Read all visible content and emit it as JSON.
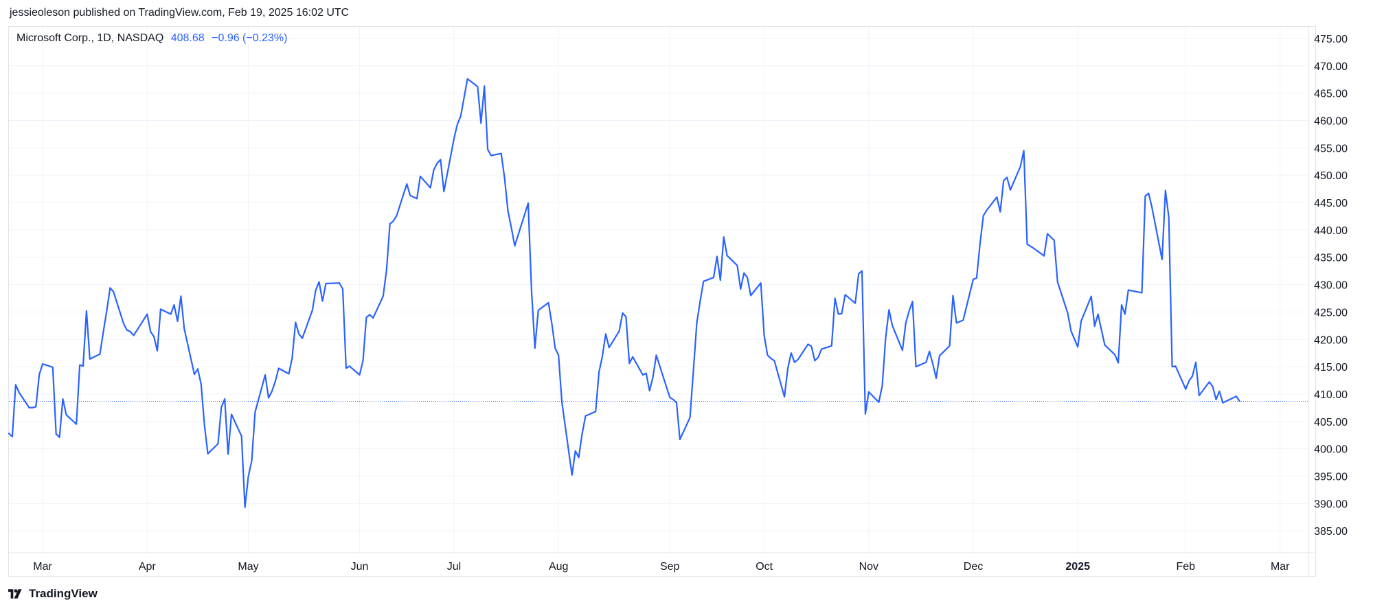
{
  "header": {
    "published_by": "jessieoleson published on TradingView.com, Feb 19, 2025 16:02 UTC"
  },
  "legend": {
    "symbol": "Microsoft Corp., 1D, NASDAQ",
    "price": "408.68",
    "change": "−0.96 (−0.23%)"
  },
  "footer": {
    "brand": "TradingView",
    "logo_icon": "tradingview-logo-icon"
  },
  "colors": {
    "line": "#2962ff",
    "grid": "#f0f3fa",
    "text": "#131722"
  },
  "chart_data": {
    "type": "line",
    "title": "",
    "xlabel": "",
    "ylabel": "",
    "ylim": [
      380,
      478
    ],
    "y_ticks": [
      385,
      390,
      395,
      400,
      405,
      410,
      415,
      420,
      425,
      430,
      435,
      440,
      445,
      450,
      455,
      460,
      465,
      470,
      475
    ],
    "y_tick_labels": [
      "385.00",
      "390.00",
      "395.00",
      "400.00",
      "405.00",
      "410.00",
      "415.00",
      "420.00",
      "425.00",
      "430.00",
      "435.00",
      "440.00",
      "445.00",
      "450.00",
      "455.00",
      "460.00",
      "465.00",
      "470.00",
      "475.00"
    ],
    "x_ticks": [
      {
        "label": "Mar",
        "date": "2024-03-01",
        "bold": false
      },
      {
        "label": "Apr",
        "date": "2024-04-01",
        "bold": false
      },
      {
        "label": "May",
        "date": "2024-05-01",
        "bold": false
      },
      {
        "label": "Jun",
        "date": "2024-06-03",
        "bold": false
      },
      {
        "label": "Jul",
        "date": "2024-07-01",
        "bold": false
      },
      {
        "label": "Aug",
        "date": "2024-08-01",
        "bold": false
      },
      {
        "label": "Sep",
        "date": "2024-09-03",
        "bold": false
      },
      {
        "label": "Oct",
        "date": "2024-10-01",
        "bold": false
      },
      {
        "label": "Nov",
        "date": "2024-11-01",
        "bold": false
      },
      {
        "label": "Dec",
        "date": "2024-12-02",
        "bold": false
      },
      {
        "label": "2025",
        "date": "2025-01-02",
        "bold": true
      },
      {
        "label": "Feb",
        "date": "2025-02-03",
        "bold": false
      },
      {
        "label": "Mar",
        "date": "2025-03-03",
        "bold": false
      }
    ],
    "x_range": [
      "2024-02-20",
      "2025-03-11"
    ],
    "last_price_line": 408.68,
    "grid": true,
    "series": [
      {
        "points": [
          [
            "2024-02-20",
            402.8
          ],
          [
            "2024-02-21",
            402.2
          ],
          [
            "2024-02-22",
            411.7
          ],
          [
            "2024-02-23",
            410.3
          ],
          [
            "2024-02-26",
            407.5
          ],
          [
            "2024-02-27",
            407.5
          ],
          [
            "2024-02-28",
            407.7
          ],
          [
            "2024-02-29",
            413.6
          ],
          [
            "2024-03-01",
            415.5
          ],
          [
            "2024-03-04",
            414.9
          ],
          [
            "2024-03-05",
            402.7
          ],
          [
            "2024-03-06",
            402.1
          ],
          [
            "2024-03-07",
            409.1
          ],
          [
            "2024-03-08",
            406.2
          ],
          [
            "2024-03-11",
            404.5
          ],
          [
            "2024-03-12",
            415.3
          ],
          [
            "2024-03-13",
            415.1
          ],
          [
            "2024-03-14",
            425.2
          ],
          [
            "2024-03-15",
            416.4
          ],
          [
            "2024-03-18",
            417.3
          ],
          [
            "2024-03-19",
            421.4
          ],
          [
            "2024-03-20",
            425.2
          ],
          [
            "2024-03-21",
            429.4
          ],
          [
            "2024-03-22",
            428.7
          ],
          [
            "2024-03-25",
            422.9
          ],
          [
            "2024-03-26",
            421.7
          ],
          [
            "2024-03-27",
            421.4
          ],
          [
            "2024-03-28",
            420.7
          ],
          [
            "2024-04-01",
            424.6
          ],
          [
            "2024-04-02",
            421.4
          ],
          [
            "2024-04-03",
            420.5
          ],
          [
            "2024-04-04",
            417.9
          ],
          [
            "2024-04-05",
            425.5
          ],
          [
            "2024-04-08",
            424.6
          ],
          [
            "2024-04-09",
            426.3
          ],
          [
            "2024-04-10",
            423.3
          ],
          [
            "2024-04-11",
            427.9
          ],
          [
            "2024-04-12",
            421.9
          ],
          [
            "2024-04-15",
            413.6
          ],
          [
            "2024-04-16",
            414.6
          ],
          [
            "2024-04-17",
            411.8
          ],
          [
            "2024-04-18",
            404.3
          ],
          [
            "2024-04-19",
            399.1
          ],
          [
            "2024-04-22",
            400.9
          ],
          [
            "2024-04-23",
            407.6
          ],
          [
            "2024-04-24",
            409.1
          ],
          [
            "2024-04-25",
            399.0
          ],
          [
            "2024-04-26",
            406.3
          ],
          [
            "2024-04-29",
            402.3
          ],
          [
            "2024-04-30",
            389.3
          ],
          [
            "2024-05-01",
            394.9
          ],
          [
            "2024-05-02",
            397.8
          ],
          [
            "2024-05-03",
            406.7
          ],
          [
            "2024-05-06",
            413.5
          ],
          [
            "2024-05-07",
            409.3
          ],
          [
            "2024-05-08",
            410.5
          ],
          [
            "2024-05-09",
            412.3
          ],
          [
            "2024-05-10",
            414.7
          ],
          [
            "2024-05-13",
            413.7
          ],
          [
            "2024-05-14",
            416.6
          ],
          [
            "2024-05-15",
            423.1
          ],
          [
            "2024-05-16",
            420.99
          ],
          [
            "2024-05-17",
            420.2
          ],
          [
            "2024-05-20",
            425.3
          ],
          [
            "2024-05-21",
            429.0
          ],
          [
            "2024-05-22",
            430.5
          ],
          [
            "2024-05-23",
            427.0
          ],
          [
            "2024-05-24",
            430.2
          ],
          [
            "2024-05-28",
            430.3
          ],
          [
            "2024-05-29",
            429.2
          ],
          [
            "2024-05-30",
            414.7
          ],
          [
            "2024-05-31",
            415.1
          ],
          [
            "2024-06-03",
            413.5
          ],
          [
            "2024-06-04",
            416.1
          ],
          [
            "2024-06-05",
            424.0
          ],
          [
            "2024-06-06",
            424.5
          ],
          [
            "2024-06-07",
            423.9
          ],
          [
            "2024-06-10",
            427.9
          ],
          [
            "2024-06-11",
            432.7
          ],
          [
            "2024-06-12",
            441.1
          ],
          [
            "2024-06-13",
            441.6
          ],
          [
            "2024-06-14",
            442.6
          ],
          [
            "2024-06-17",
            448.4
          ],
          [
            "2024-06-18",
            446.3
          ],
          [
            "2024-06-20",
            445.7
          ],
          [
            "2024-06-21",
            449.8
          ],
          [
            "2024-06-24",
            447.7
          ],
          [
            "2024-06-25",
            450.95
          ],
          [
            "2024-06-26",
            452.2
          ],
          [
            "2024-06-27",
            452.85
          ],
          [
            "2024-06-28",
            447.0
          ],
          [
            "2024-07-01",
            456.7
          ],
          [
            "2024-07-02",
            459.3
          ],
          [
            "2024-07-03",
            460.8
          ],
          [
            "2024-07-05",
            467.6
          ],
          [
            "2024-07-08",
            466.2
          ],
          [
            "2024-07-09",
            459.5
          ],
          [
            "2024-07-10",
            466.3
          ],
          [
            "2024-07-11",
            454.7
          ],
          [
            "2024-07-12",
            453.6
          ],
          [
            "2024-07-15",
            453.96
          ],
          [
            "2024-07-16",
            449.5
          ],
          [
            "2024-07-17",
            443.5
          ],
          [
            "2024-07-18",
            440.4
          ],
          [
            "2024-07-19",
            437.1
          ],
          [
            "2024-07-22",
            442.9
          ],
          [
            "2024-07-23",
            444.9
          ],
          [
            "2024-07-24",
            428.9
          ],
          [
            "2024-07-25",
            418.4
          ],
          [
            "2024-07-26",
            425.3
          ],
          [
            "2024-07-29",
            426.7
          ],
          [
            "2024-07-30",
            422.9
          ],
          [
            "2024-07-31",
            418.35
          ],
          [
            "2024-08-01",
            417.1
          ],
          [
            "2024-08-02",
            408.5
          ],
          [
            "2024-08-05",
            395.2
          ],
          [
            "2024-08-06",
            399.6
          ],
          [
            "2024-08-07",
            398.4
          ],
          [
            "2024-08-08",
            402.7
          ],
          [
            "2024-08-09",
            406.0
          ],
          [
            "2024-08-12",
            406.8
          ],
          [
            "2024-08-13",
            414.0
          ],
          [
            "2024-08-14",
            416.9
          ],
          [
            "2024-08-15",
            421.0
          ],
          [
            "2024-08-16",
            418.5
          ],
          [
            "2024-08-19",
            421.5
          ],
          [
            "2024-08-20",
            424.8
          ],
          [
            "2024-08-21",
            424.1
          ],
          [
            "2024-08-22",
            415.6
          ],
          [
            "2024-08-23",
            416.8
          ],
          [
            "2024-08-26",
            413.5
          ],
          [
            "2024-08-27",
            413.8
          ],
          [
            "2024-08-28",
            410.6
          ],
          [
            "2024-08-29",
            413.1
          ],
          [
            "2024-08-30",
            417.1
          ],
          [
            "2024-09-03",
            409.4
          ],
          [
            "2024-09-04",
            409.0
          ],
          [
            "2024-09-05",
            408.4
          ],
          [
            "2024-09-06",
            401.7
          ],
          [
            "2024-09-09",
            405.7
          ],
          [
            "2024-09-10",
            414.2
          ],
          [
            "2024-09-11",
            423.0
          ],
          [
            "2024-09-12",
            427.0
          ],
          [
            "2024-09-13",
            430.6
          ],
          [
            "2024-09-16",
            431.3
          ],
          [
            "2024-09-17",
            435.15
          ],
          [
            "2024-09-18",
            430.8
          ],
          [
            "2024-09-19",
            438.7
          ],
          [
            "2024-09-20",
            435.3
          ],
          [
            "2024-09-23",
            433.5
          ],
          [
            "2024-09-24",
            429.2
          ],
          [
            "2024-09-25",
            432.1
          ],
          [
            "2024-09-26",
            431.3
          ],
          [
            "2024-09-27",
            428.0
          ],
          [
            "2024-09-30",
            430.3
          ],
          [
            "2024-10-01",
            420.7
          ],
          [
            "2024-10-02",
            417.1
          ],
          [
            "2024-10-03",
            416.5
          ],
          [
            "2024-10-04",
            416.1
          ],
          [
            "2024-10-07",
            409.5
          ],
          [
            "2024-10-08",
            414.7
          ],
          [
            "2024-10-09",
            417.5
          ],
          [
            "2024-10-10",
            415.8
          ],
          [
            "2024-10-11",
            416.3
          ],
          [
            "2024-10-14",
            419.1
          ],
          [
            "2024-10-15",
            418.7
          ],
          [
            "2024-10-16",
            416.1
          ],
          [
            "2024-10-17",
            416.7
          ],
          [
            "2024-10-18",
            418.2
          ],
          [
            "2024-10-21",
            418.8
          ],
          [
            "2024-10-22",
            427.5
          ],
          [
            "2024-10-23",
            424.6
          ],
          [
            "2024-10-24",
            424.7
          ],
          [
            "2024-10-25",
            428.15
          ],
          [
            "2024-10-28",
            426.6
          ],
          [
            "2024-10-29",
            431.95
          ],
          [
            "2024-10-30",
            432.5
          ],
          [
            "2024-10-31",
            406.35
          ],
          [
            "2024-11-01",
            410.4
          ],
          [
            "2024-11-04",
            408.5
          ],
          [
            "2024-11-05",
            411.5
          ],
          [
            "2024-11-06",
            420.2
          ],
          [
            "2024-11-07",
            425.4
          ],
          [
            "2024-11-08",
            422.5
          ],
          [
            "2024-11-11",
            418.0
          ],
          [
            "2024-11-12",
            423.0
          ],
          [
            "2024-11-13",
            425.2
          ],
          [
            "2024-11-14",
            426.9
          ],
          [
            "2024-11-15",
            415.0
          ],
          [
            "2024-11-18",
            415.8
          ],
          [
            "2024-11-19",
            417.8
          ],
          [
            "2024-11-20",
            415.5
          ],
          [
            "2024-11-21",
            412.9
          ],
          [
            "2024-11-22",
            417.0
          ],
          [
            "2024-11-25",
            418.8
          ],
          [
            "2024-11-26",
            427.99
          ],
          [
            "2024-11-27",
            422.99
          ],
          [
            "2024-11-29",
            423.5
          ],
          [
            "2024-12-02",
            430.98
          ],
          [
            "2024-12-03",
            431.2
          ],
          [
            "2024-12-04",
            437.4
          ],
          [
            "2024-12-05",
            442.6
          ],
          [
            "2024-12-06",
            443.6
          ],
          [
            "2024-12-09",
            446.0
          ],
          [
            "2024-12-10",
            443.3
          ],
          [
            "2024-12-11",
            448.99
          ],
          [
            "2024-12-12",
            449.6
          ],
          [
            "2024-12-13",
            447.3
          ],
          [
            "2024-12-16",
            451.6
          ],
          [
            "2024-12-17",
            454.5
          ],
          [
            "2024-12-18",
            437.4
          ],
          [
            "2024-12-19",
            437.0
          ],
          [
            "2024-12-20",
            436.6
          ],
          [
            "2024-12-23",
            435.25
          ],
          [
            "2024-12-24",
            439.3
          ],
          [
            "2024-12-26",
            438.1
          ],
          [
            "2024-12-27",
            430.5
          ],
          [
            "2024-12-30",
            424.8
          ],
          [
            "2024-12-31",
            421.5
          ],
          [
            "2025-01-02",
            418.6
          ],
          [
            "2025-01-03",
            423.35
          ],
          [
            "2025-01-06",
            427.85
          ],
          [
            "2025-01-07",
            422.4
          ],
          [
            "2025-01-08",
            424.6
          ],
          [
            "2025-01-10",
            418.95
          ],
          [
            "2025-01-13",
            417.2
          ],
          [
            "2025-01-14",
            415.7
          ],
          [
            "2025-01-15",
            426.3
          ],
          [
            "2025-01-16",
            424.6
          ],
          [
            "2025-01-17",
            429.0
          ],
          [
            "2025-01-21",
            428.5
          ],
          [
            "2025-01-22",
            446.2
          ],
          [
            "2025-01-23",
            446.7
          ],
          [
            "2025-01-24",
            444.1
          ],
          [
            "2025-01-27",
            434.6
          ],
          [
            "2025-01-28",
            447.2
          ],
          [
            "2025-01-29",
            442.3
          ],
          [
            "2025-01-30",
            414.99
          ],
          [
            "2025-01-31",
            415.1
          ],
          [
            "2025-02-03",
            410.9
          ],
          [
            "2025-02-04",
            412.4
          ],
          [
            "2025-02-05",
            413.3
          ],
          [
            "2025-02-06",
            415.8
          ],
          [
            "2025-02-07",
            409.75
          ],
          [
            "2025-02-10",
            412.2
          ],
          [
            "2025-02-11",
            411.4
          ],
          [
            "2025-02-12",
            409.0
          ],
          [
            "2025-02-13",
            410.5
          ],
          [
            "2025-02-14",
            408.4
          ],
          [
            "2025-02-18",
            409.6
          ],
          [
            "2025-02-19",
            408.68
          ]
        ]
      }
    ]
  }
}
